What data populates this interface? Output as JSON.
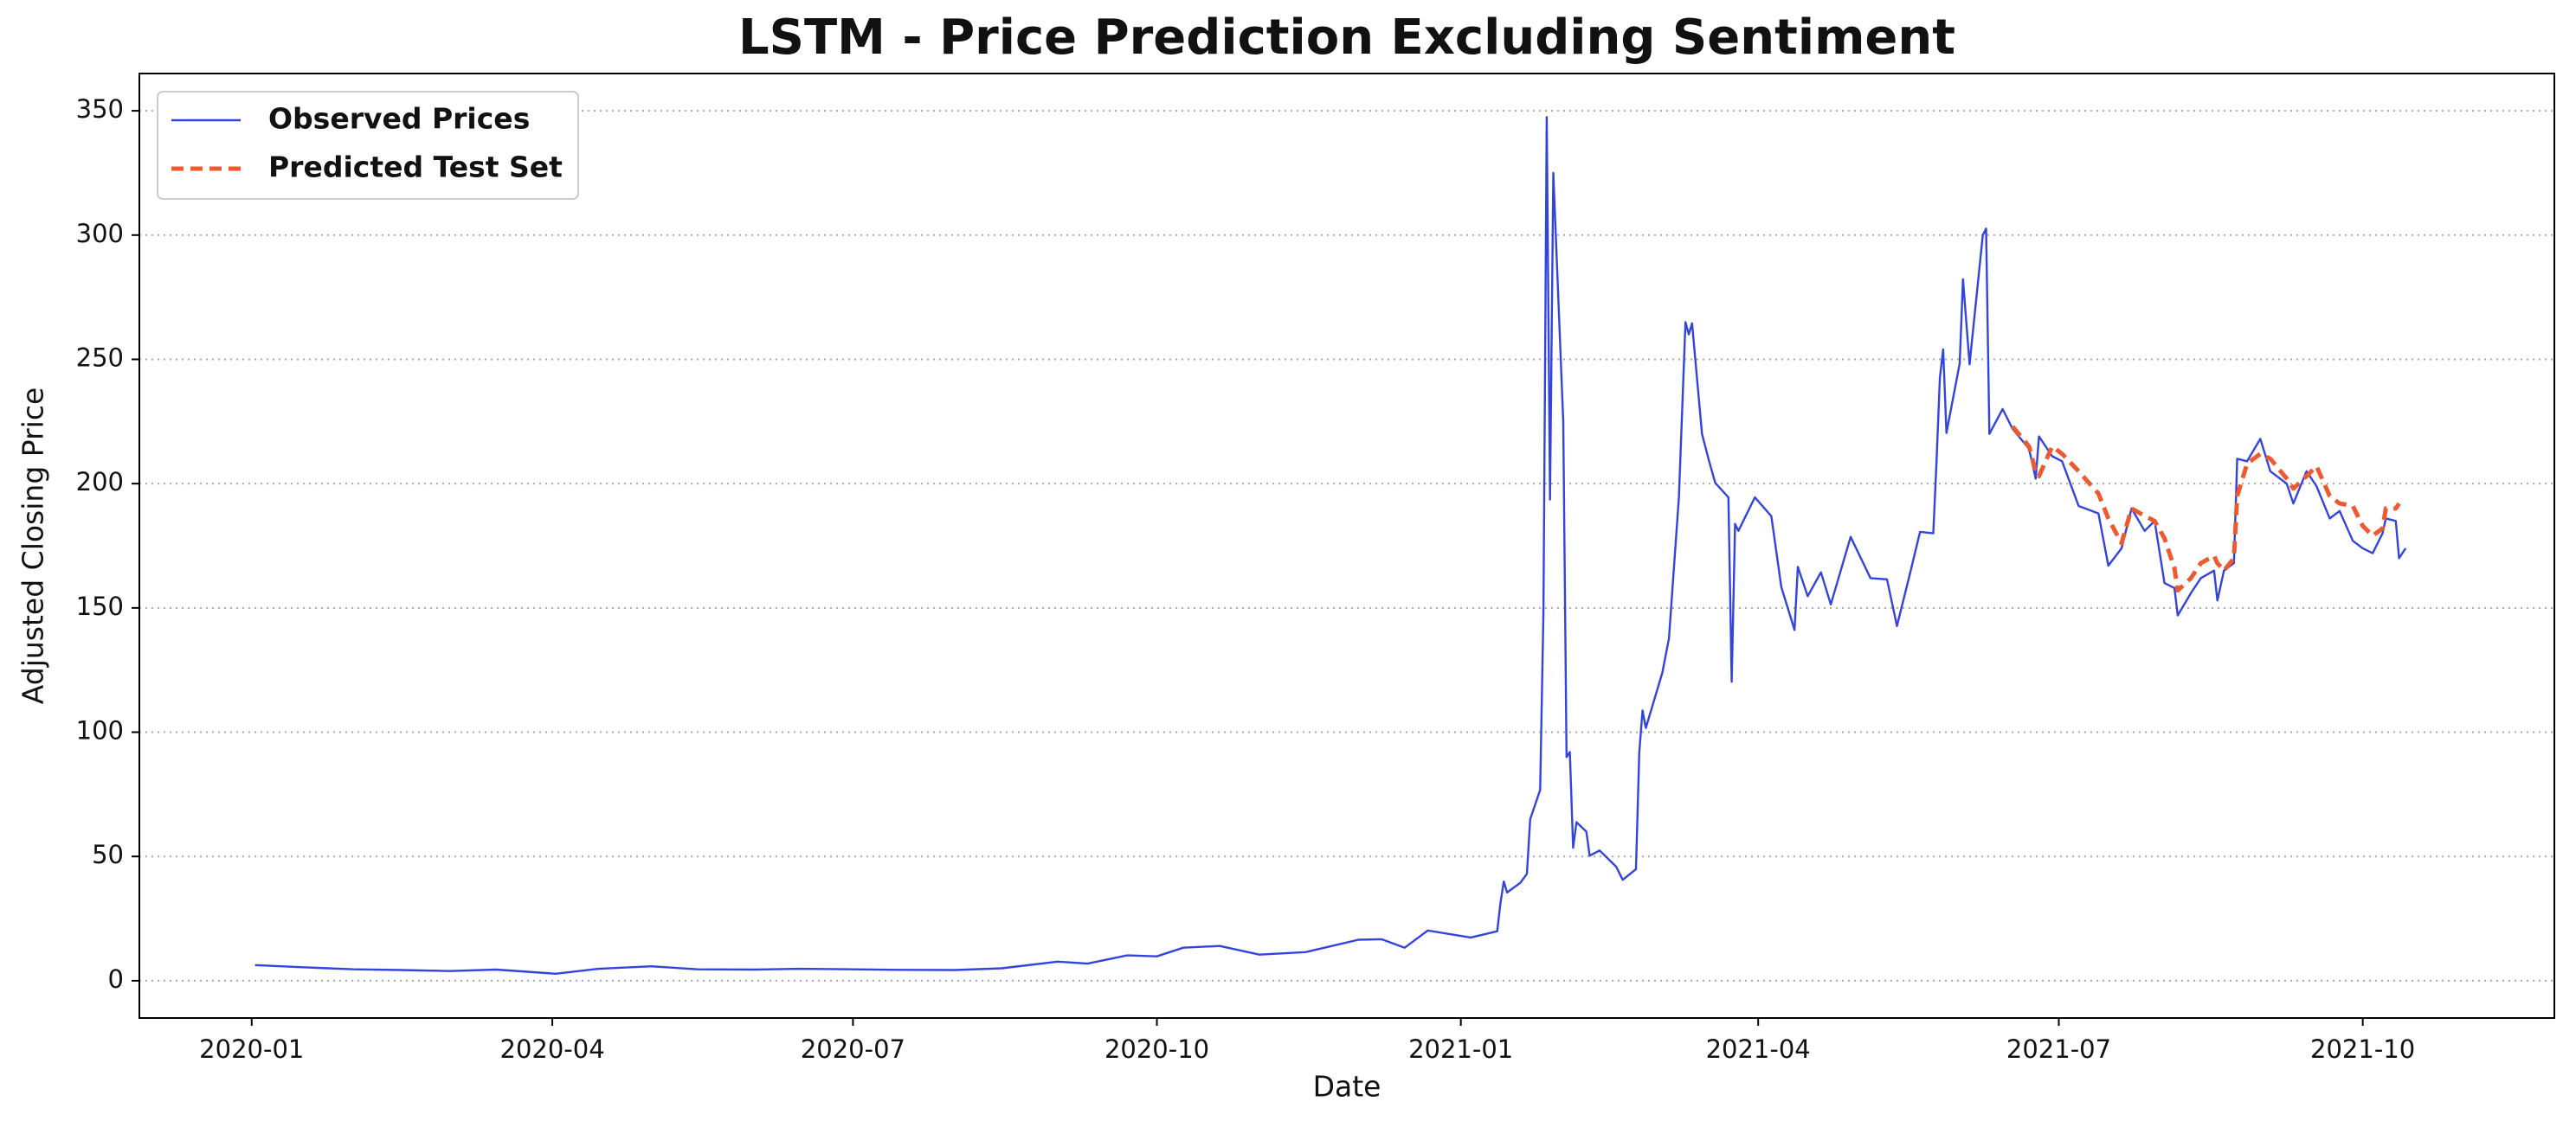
{
  "chart_data": {
    "type": "line",
    "title": "LSTM - Price Prediction Excluding Sentiment",
    "x_label": "Date",
    "y_label": "Adjusted Closing Price",
    "x": [
      "2020-01-02",
      "2020-01-15",
      "2020-02-01",
      "2020-02-15",
      "2020-03-01",
      "2020-03-15",
      "2020-04-02",
      "2020-04-15",
      "2020-05-01",
      "2020-05-15",
      "2020-06-01",
      "2020-06-15",
      "2020-07-01",
      "2020-07-15",
      "2020-08-01",
      "2020-08-15",
      "2020-09-01",
      "2020-09-10",
      "2020-09-22",
      "2020-10-01",
      "2020-10-09",
      "2020-10-20",
      "2020-11-01",
      "2020-11-15",
      "2020-12-01",
      "2020-12-08",
      "2020-12-15",
      "2020-12-22",
      "2021-01-04",
      "2021-01-12",
      "2021-01-13",
      "2021-01-14",
      "2021-01-15",
      "2021-01-19",
      "2021-01-21",
      "2021-01-22",
      "2021-01-25",
      "2021-01-26",
      "2021-01-27",
      "2021-01-28",
      "2021-01-29",
      "2021-02-01",
      "2021-02-02",
      "2021-02-03",
      "2021-02-04",
      "2021-02-05",
      "2021-02-08",
      "2021-02-09",
      "2021-02-12",
      "2021-02-17",
      "2021-02-19",
      "2021-02-23",
      "2021-02-24",
      "2021-02-25",
      "2021-02-26",
      "2021-03-03",
      "2021-03-05",
      "2021-03-08",
      "2021-03-10",
      "2021-03-11",
      "2021-03-12",
      "2021-03-15",
      "2021-03-17",
      "2021-03-19",
      "2021-03-23",
      "2021-03-24",
      "2021-03-25",
      "2021-03-26",
      "2021-03-31",
      "2021-04-05",
      "2021-04-08",
      "2021-04-12",
      "2021-04-13",
      "2021-04-16",
      "2021-04-20",
      "2021-04-23",
      "2021-04-29",
      "2021-05-05",
      "2021-05-10",
      "2021-05-13",
      "2021-05-17",
      "2021-05-20",
      "2021-05-24",
      "2021-05-25",
      "2021-05-26",
      "2021-05-27",
      "2021-05-28",
      "2021-06-01",
      "2021-06-02",
      "2021-06-04",
      "2021-06-08",
      "2021-06-09",
      "2021-06-10",
      "2021-06-14",
      "2021-06-17",
      "2021-06-22",
      "2021-06-24",
      "2021-06-25",
      "2021-06-29",
      "2021-07-02",
      "2021-07-07",
      "2021-07-13",
      "2021-07-16",
      "2021-07-20",
      "2021-07-23",
      "2021-07-27",
      "2021-07-30",
      "2021-08-02",
      "2021-08-05",
      "2021-08-06",
      "2021-08-10",
      "2021-08-13",
      "2021-08-17",
      "2021-08-18",
      "2021-08-20",
      "2021-08-23",
      "2021-08-24",
      "2021-08-27",
      "2021-08-31",
      "2021-09-03",
      "2021-09-08",
      "2021-09-10",
      "2021-09-14",
      "2021-09-17",
      "2021-09-21",
      "2021-09-24",
      "2021-09-28",
      "2021-10-01",
      "2021-10-04",
      "2021-10-07",
      "2021-10-08",
      "2021-10-11",
      "2021-10-12",
      "2021-10-14"
    ],
    "series": [
      {
        "name": "Observed Prices",
        "color": "#3344dd",
        "dashed": false,
        "values": [
          6.3,
          5.5,
          4.6,
          4.3,
          3.9,
          4.5,
          2.8,
          4.8,
          5.8,
          4.6,
          4.5,
          4.8,
          4.6,
          4.4,
          4.3,
          5.0,
          7.7,
          6.9,
          10.2,
          9.8,
          13.3,
          14.0,
          10.5,
          11.5,
          16.5,
          16.7,
          13.3,
          20.2,
          17.4,
          19.9,
          31.4,
          39.9,
          35.5,
          39.4,
          43.0,
          65.0,
          76.8,
          148,
          347.5,
          193.6,
          325,
          225,
          90,
          92,
          53.5,
          63.8,
          60,
          50.3,
          52.4,
          45.9,
          40.6,
          44.9,
          91.7,
          108.7,
          101.7,
          124,
          137.7,
          194.5,
          265,
          260,
          264.5,
          220,
          209.8,
          200.3,
          194.5,
          120.3,
          183.8,
          181,
          194.5,
          186.9,
          158.4,
          141.1,
          166.5,
          154.7,
          164.3,
          151.4,
          178.6,
          162,
          161.5,
          142.7,
          164,
          180.6,
          180,
          209.4,
          242.6,
          254,
          220.4,
          248.4,
          282.2,
          248,
          300,
          302.6,
          220,
          230,
          222,
          214,
          202,
          219,
          211,
          209,
          191,
          188,
          167,
          174,
          190,
          181,
          185,
          160,
          158,
          147,
          156,
          162,
          165,
          153,
          165,
          168,
          210,
          209,
          218,
          205,
          200,
          192,
          205,
          199,
          186,
          189,
          177,
          174,
          172,
          180,
          186,
          185,
          170,
          174
        ]
      },
      {
        "name": "Predicted Test Set",
        "color": "#ee5a2f",
        "dashed": true,
        "values": [
          null,
          null,
          null,
          null,
          null,
          null,
          null,
          null,
          null,
          null,
          null,
          null,
          null,
          null,
          null,
          null,
          null,
          null,
          null,
          null,
          null,
          null,
          null,
          null,
          null,
          null,
          null,
          null,
          null,
          null,
          null,
          null,
          null,
          null,
          null,
          null,
          null,
          null,
          null,
          null,
          null,
          null,
          null,
          null,
          null,
          null,
          null,
          null,
          null,
          null,
          null,
          null,
          null,
          null,
          null,
          null,
          null,
          null,
          null,
          null,
          null,
          null,
          null,
          null,
          null,
          null,
          null,
          null,
          null,
          null,
          null,
          null,
          null,
          null,
          null,
          null,
          null,
          null,
          null,
          null,
          null,
          null,
          null,
          null,
          null,
          null,
          null,
          null,
          null,
          null,
          null,
          null,
          null,
          null,
          223,
          215,
          205,
          203,
          215,
          212,
          205,
          196,
          186,
          176,
          190,
          187,
          185,
          178,
          166,
          157,
          162,
          168,
          171,
          168,
          165,
          170,
          195,
          208,
          212,
          210,
          202,
          198,
          203,
          207,
          195,
          192,
          191,
          183,
          179,
          182,
          190,
          190,
          192,
          null
        ]
      }
    ],
    "xlim": [
      "2019-11-28",
      "2021-11-28"
    ],
    "xticks": [
      "2020-01",
      "2020-04",
      "2020-07",
      "2020-10",
      "2021-01",
      "2021-04",
      "2021-07",
      "2021-10"
    ],
    "ylim": [
      -15,
      365
    ],
    "yticks": [
      0,
      50,
      100,
      150,
      200,
      250,
      300,
      350
    ],
    "grid": true,
    "legend": "upper left"
  }
}
